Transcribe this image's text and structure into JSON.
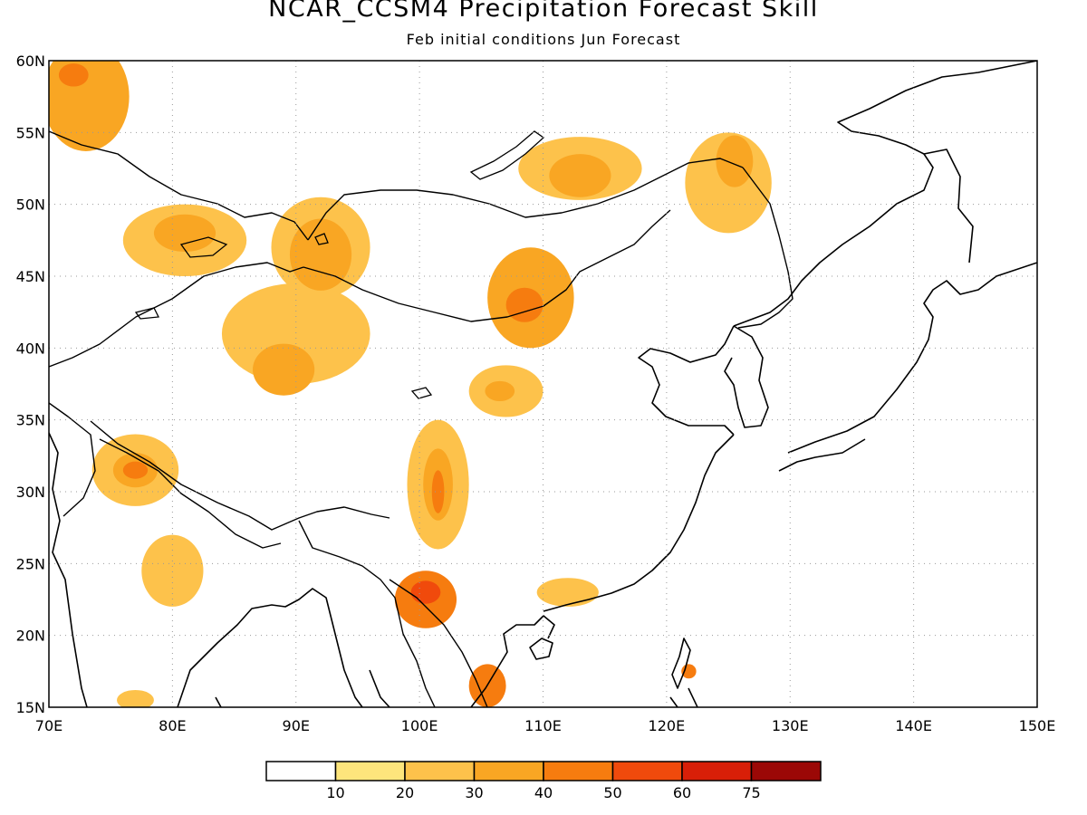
{
  "header": {
    "title": "NCAR_CCSM4 Precipitation Forecast Skill",
    "subtitle": "Feb initial conditions  Jun Forecast"
  },
  "map": {
    "lon_range": [
      70,
      150
    ],
    "lat_range": [
      15,
      60
    ],
    "lon_ticks": [
      "70E",
      "80E",
      "90E",
      "100E",
      "110E",
      "120E",
      "130E",
      "140E",
      "150E"
    ],
    "lat_ticks": [
      "15N",
      "20N",
      "25N",
      "30N",
      "35N",
      "40N",
      "45N",
      "50N",
      "55N",
      "60N"
    ],
    "gridlines": "dotted"
  },
  "colorbar": {
    "labels": [
      "10",
      "20",
      "30",
      "40",
      "50",
      "60",
      "75"
    ],
    "colors": [
      "#ffffff",
      "#fde57c",
      "#fdc24b",
      "#f9a623",
      "#f67c0f",
      "#f04a0c",
      "#d81f08",
      "#9b0806"
    ]
  },
  "chart_data": {
    "type": "heatmap",
    "title": "NCAR_CCSM4 Precipitation Forecast Skill",
    "subtitle": "Feb initial conditions  Jun Forecast",
    "xlabel": "",
    "ylabel": "",
    "x_range": [
      70,
      150
    ],
    "y_range": [
      15,
      60
    ],
    "levels": [
      10,
      20,
      30,
      40,
      50,
      60,
      75
    ],
    "regions": [
      {
        "lon": 73,
        "lat": 57.5,
        "rx": 3.5,
        "ry": 3.8,
        "level": 30
      },
      {
        "lon": 72,
        "lat": 59,
        "rx": 1.2,
        "ry": 0.8,
        "level": 40
      },
      {
        "lon": 81,
        "lat": 47.5,
        "rx": 5,
        "ry": 2.5,
        "level": 20
      },
      {
        "lon": 81,
        "lat": 48,
        "rx": 2.5,
        "ry": 1.3,
        "level": 30
      },
      {
        "lon": 92,
        "lat": 47,
        "rx": 4,
        "ry": 3.5,
        "level": 20
      },
      {
        "lon": 92,
        "lat": 46.5,
        "rx": 2.5,
        "ry": 2.5,
        "level": 30
      },
      {
        "lon": 90,
        "lat": 41,
        "rx": 6,
        "ry": 3.5,
        "level": 20
      },
      {
        "lon": 89,
        "lat": 38.5,
        "rx": 2.5,
        "ry": 1.8,
        "level": 30
      },
      {
        "lon": 109,
        "lat": 43.5,
        "rx": 3.5,
        "ry": 3.5,
        "level": 30
      },
      {
        "lon": 108.5,
        "lat": 43,
        "rx": 1.5,
        "ry": 1.2,
        "level": 40
      },
      {
        "lon": 113,
        "lat": 52.5,
        "rx": 5,
        "ry": 2.2,
        "level": 20
      },
      {
        "lon": 113,
        "lat": 52,
        "rx": 2.5,
        "ry": 1.5,
        "level": 30
      },
      {
        "lon": 125,
        "lat": 51.5,
        "rx": 3.5,
        "ry": 3.5,
        "level": 20
      },
      {
        "lon": 125.5,
        "lat": 53,
        "rx": 1.5,
        "ry": 1.8,
        "level": 30
      },
      {
        "lon": 107,
        "lat": 37,
        "rx": 3,
        "ry": 1.8,
        "level": 20
      },
      {
        "lon": 106.5,
        "lat": 37,
        "rx": 1.2,
        "ry": 0.7,
        "level": 30
      },
      {
        "lon": 101.5,
        "lat": 30.5,
        "rx": 2.5,
        "ry": 4.5,
        "level": 20
      },
      {
        "lon": 101.5,
        "lat": 30.5,
        "rx": 1.2,
        "ry": 2.5,
        "level": 30
      },
      {
        "lon": 101.5,
        "lat": 30,
        "rx": 0.5,
        "ry": 1.5,
        "level": 40
      },
      {
        "lon": 77,
        "lat": 31.5,
        "rx": 3.5,
        "ry": 2.5,
        "level": 20
      },
      {
        "lon": 77,
        "lat": 31.5,
        "rx": 1.8,
        "ry": 1.2,
        "level": 30
      },
      {
        "lon": 77,
        "lat": 31.5,
        "rx": 1,
        "ry": 0.6,
        "level": 40
      },
      {
        "lon": 80,
        "lat": 24.5,
        "rx": 2.5,
        "ry": 2.5,
        "level": 20
      },
      {
        "lon": 100.5,
        "lat": 22.5,
        "rx": 2.5,
        "ry": 2,
        "level": 40
      },
      {
        "lon": 100.5,
        "lat": 23,
        "rx": 1.2,
        "ry": 0.8,
        "level": 50
      },
      {
        "lon": 105.5,
        "lat": 16.5,
        "rx": 1.5,
        "ry": 1.5,
        "level": 40
      },
      {
        "lon": 121.8,
        "lat": 17.5,
        "rx": 0.6,
        "ry": 0.5,
        "level": 40
      },
      {
        "lon": 112,
        "lat": 23,
        "rx": 2.5,
        "ry": 1,
        "level": 20
      },
      {
        "lon": 77,
        "lat": 15.5,
        "rx": 1.5,
        "ry": 0.7,
        "level": 20
      }
    ]
  }
}
